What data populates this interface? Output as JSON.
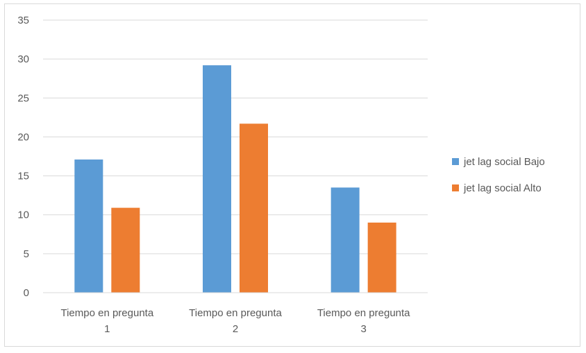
{
  "chart_data": {
    "type": "bar",
    "title": "",
    "xlabel": "",
    "ylabel": "",
    "categories": [
      [
        "Tiempo en pregunta",
        "1"
      ],
      [
        "Tiempo en pregunta",
        "2"
      ],
      [
        "Tiempo en pregunta",
        "3"
      ]
    ],
    "series": [
      {
        "name": "jet lag social Bajo",
        "color": "#5b9bd5",
        "values": [
          17.1,
          29.2,
          13.5
        ]
      },
      {
        "name": "jet lag social Alto",
        "color": "#ed7d31",
        "values": [
          10.9,
          21.7,
          9.0
        ]
      }
    ],
    "ylim": [
      0,
      35
    ],
    "yticks": [
      0,
      5,
      10,
      15,
      20,
      25,
      30,
      35
    ],
    "grid": true,
    "legend_position": "right"
  }
}
